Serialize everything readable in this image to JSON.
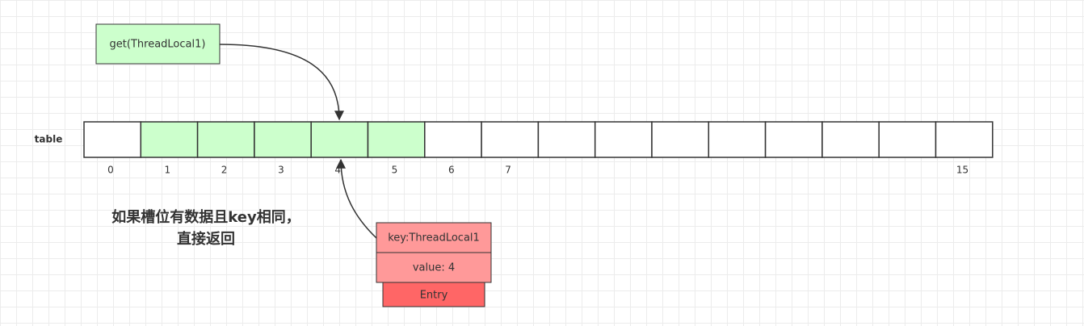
{
  "get_box": {
    "label": "get(ThreadLocal1)"
  },
  "table": {
    "label": "table",
    "index_labels": [
      0,
      1,
      2,
      3,
      4,
      5,
      6,
      7,
      15
    ]
  },
  "note": {
    "lines": [
      "如果槽位有数据且key相同，",
      "直接返回"
    ]
  },
  "entry": {
    "key": "key:ThreadLocal1",
    "value": "value: 4",
    "title": "Entry"
  }
}
